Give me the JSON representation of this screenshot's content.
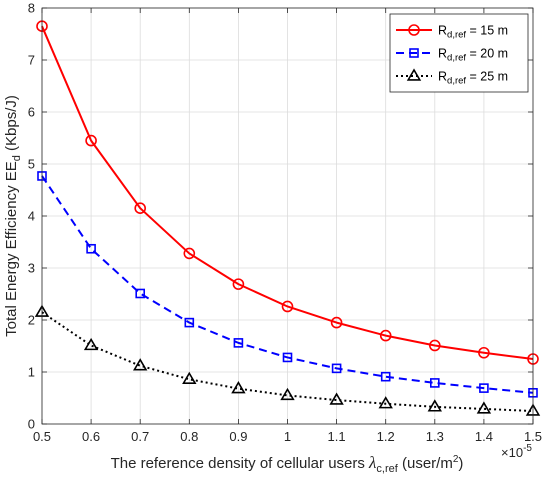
{
  "chart_data": {
    "type": "line",
    "x": [
      0.5,
      0.6,
      0.7,
      0.8,
      0.9,
      1.0,
      1.1,
      1.2,
      1.3,
      1.4,
      1.5
    ],
    "x_tick_labels": [
      "0.5",
      "0.6",
      "0.7",
      "0.8",
      "0.9",
      "1",
      "1.1",
      "1.2",
      "1.3",
      "1.4",
      "1.5"
    ],
    "y_tick_labels": [
      "0",
      "1",
      "2",
      "3",
      "4",
      "5",
      "6",
      "7",
      "8"
    ],
    "xlim": [
      0.5,
      1.5
    ],
    "ylim": [
      0,
      8
    ],
    "x_multiplier": "×10",
    "x_multiplier_exp": "-5",
    "xlabel": {
      "main": "The reference density of cellular users ",
      "symbol": "λ",
      "sub": "c,ref",
      "unit_pre": " (user/m",
      "unit_sup": "2",
      "unit_post": ")"
    },
    "ylabel": {
      "main": "Total Energy Efficiency EE",
      "sub": "d",
      "unit": " (Kbps/J)"
    },
    "grid": true,
    "legend_position": "top-right",
    "series": [
      {
        "name": "R",
        "name_sub": "d,ref",
        "name_rest": " = 15 m",
        "color": "#ff0000",
        "dash": "solid",
        "marker": "circle",
        "values": [
          7.65,
          5.45,
          4.15,
          3.28,
          2.69,
          2.26,
          1.95,
          1.7,
          1.51,
          1.37,
          1.25
        ]
      },
      {
        "name": "R",
        "name_sub": "d,ref",
        "name_rest": " = 20 m",
        "color": "#0000ff",
        "dash": "dashed",
        "marker": "square",
        "values": [
          4.77,
          3.37,
          2.51,
          1.95,
          1.56,
          1.28,
          1.07,
          0.91,
          0.79,
          0.69,
          0.6
        ]
      },
      {
        "name": "R",
        "name_sub": "d,ref",
        "name_rest": " = 25 m",
        "color": "#000000",
        "dash": "dotted",
        "marker": "triangle",
        "values": [
          2.15,
          1.51,
          1.12,
          0.86,
          0.68,
          0.55,
          0.46,
          0.39,
          0.33,
          0.29,
          0.25
        ]
      }
    ]
  }
}
